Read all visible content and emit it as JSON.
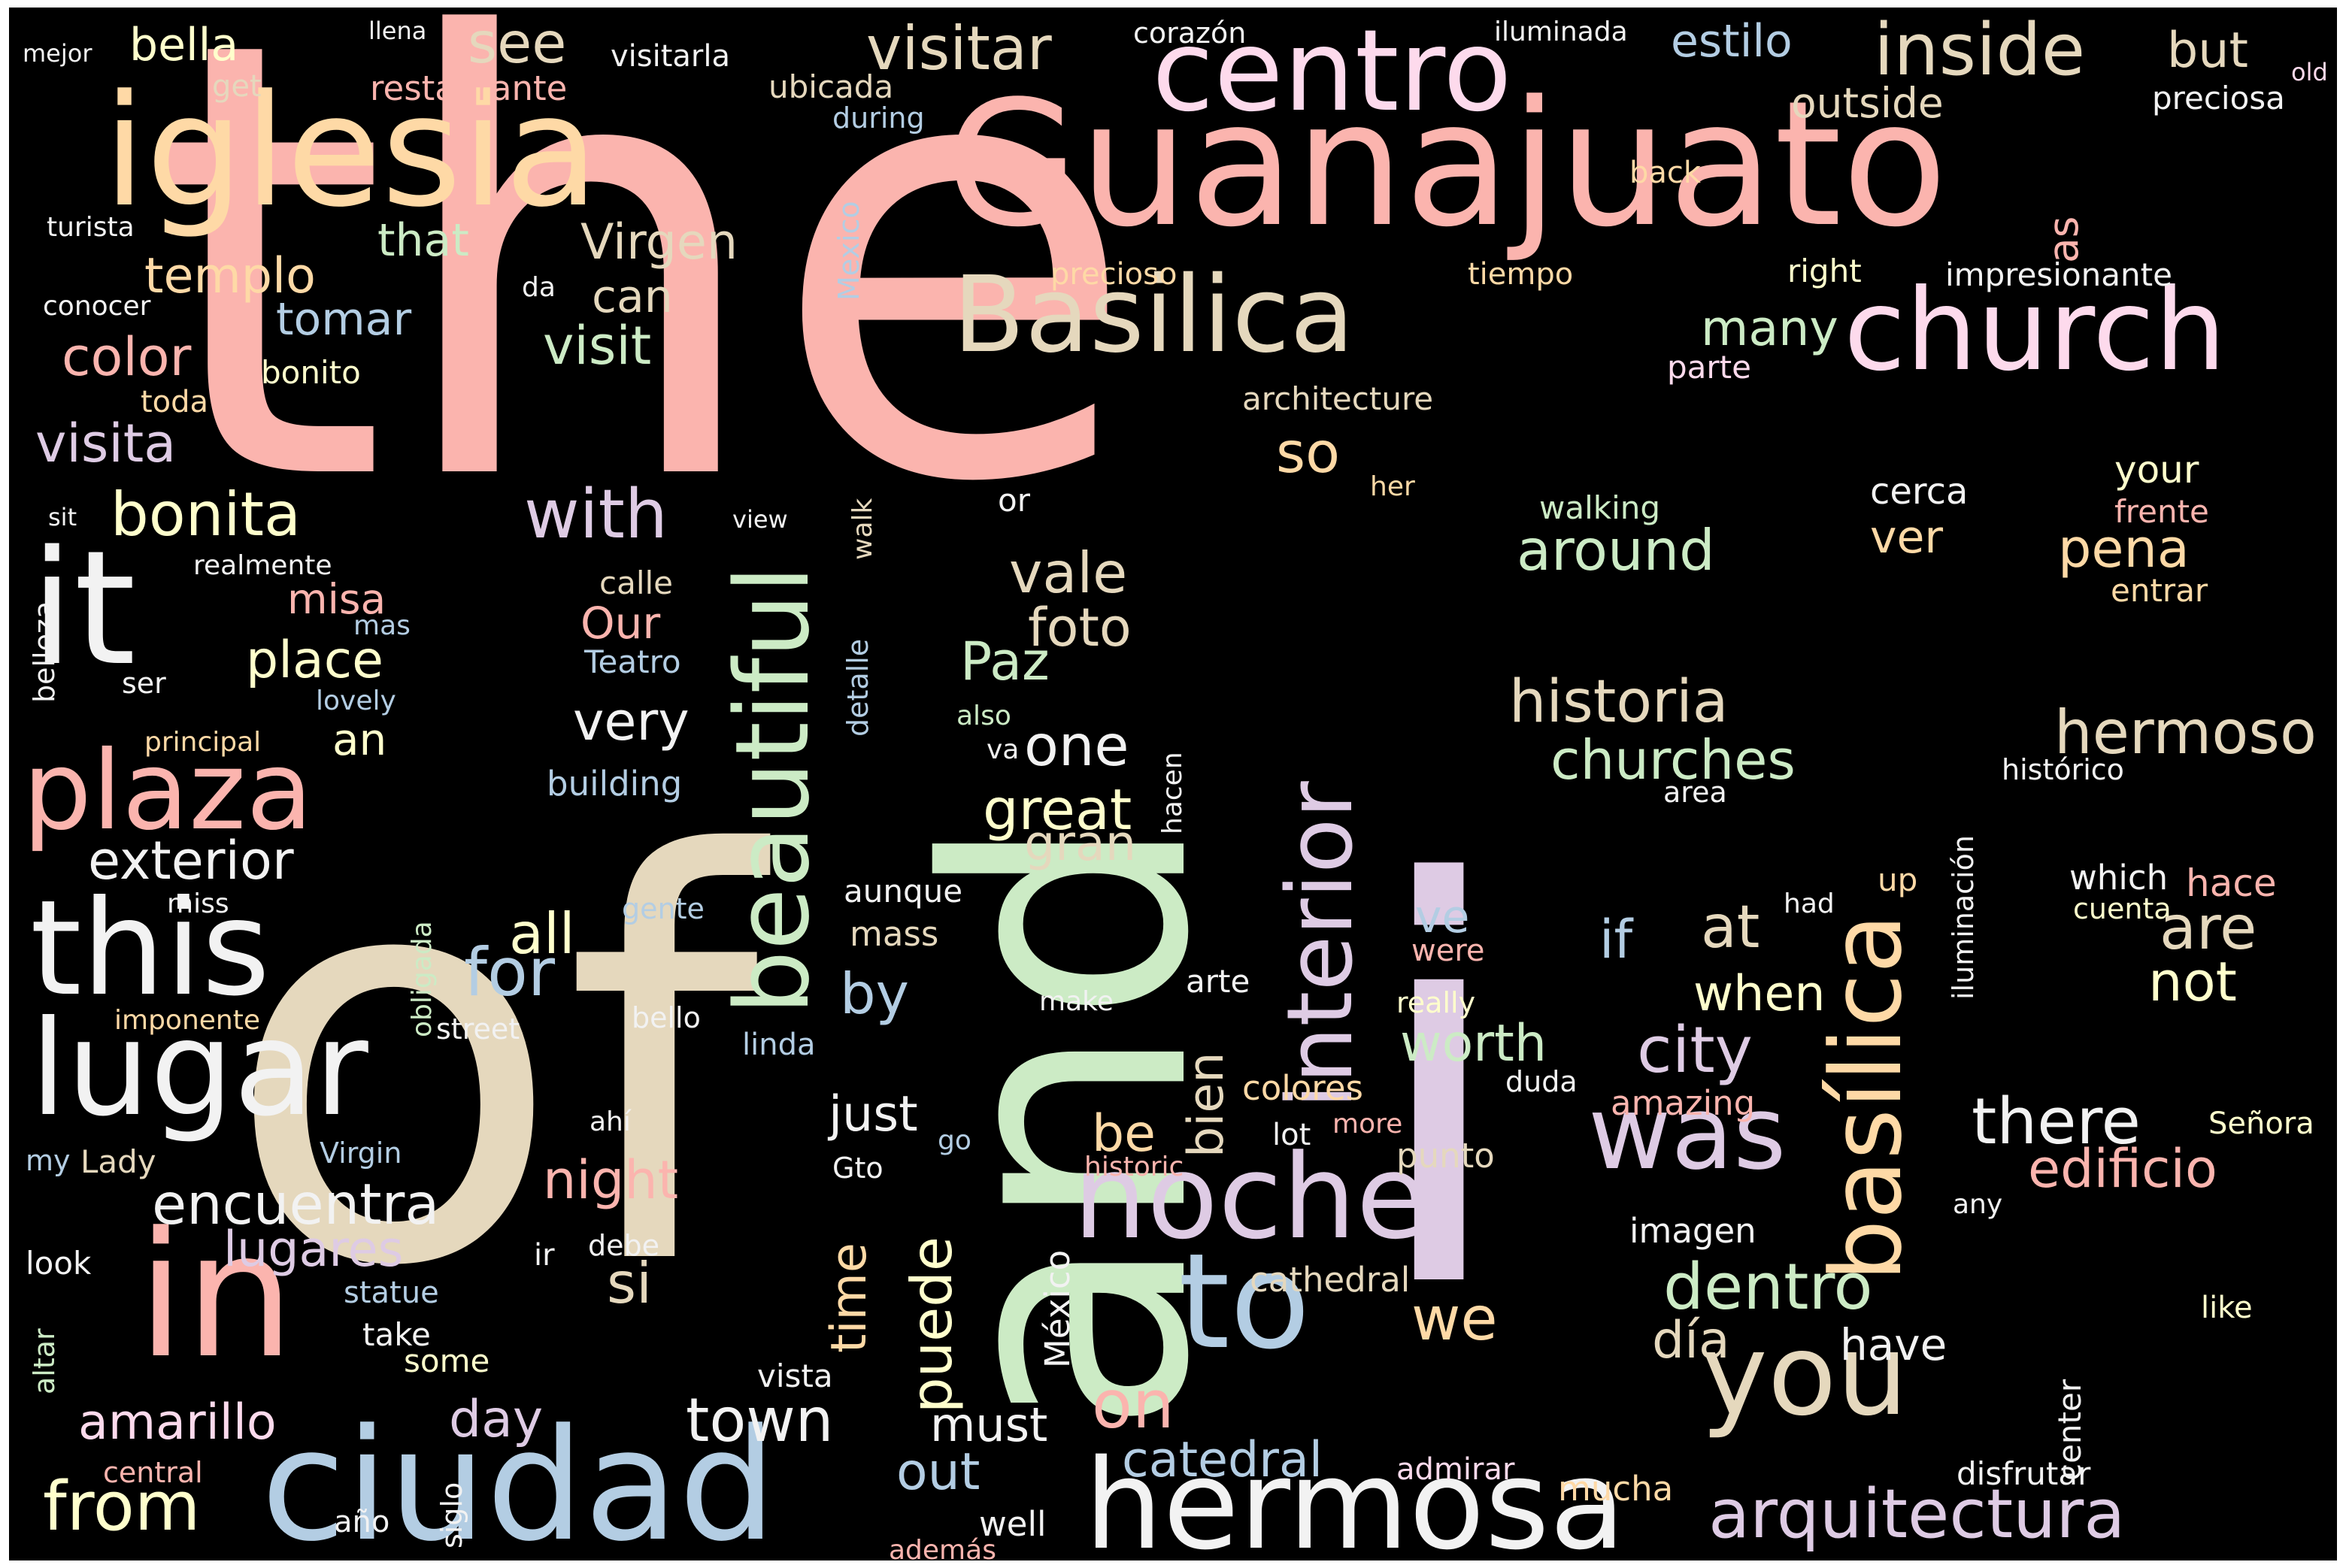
{
  "colors": {
    "background": "#000000",
    "palette": [
      "#fbb4ae",
      "#b3cde3",
      "#ccebc5",
      "#decbe4",
      "#fed9a6",
      "#ffffcc",
      "#e5d8bd",
      "#fddaec",
      "#f2f2f2"
    ]
  },
  "words": {
    "the": "the",
    "and": "and",
    "of": "of",
    "i": "i",
    "guanajuato": "Guanajuato",
    "iglesia": "iglesia",
    "basilica": "Basilica",
    "church": "church",
    "centro": "centro",
    "ciudad": "ciudad",
    "hermosa": "hermosa",
    "it": "it",
    "in": "in",
    "this": "this",
    "lugar": "lugar",
    "plaza": "plaza",
    "beautiful": "beautiful",
    "interior": "interior",
    "basilica_accent": "basílica",
    "noche": "noche",
    "to": "to",
    "was": "was",
    "you": "you",
    "arquitectura": "arquitectura",
    "inside": "inside",
    "visitar": "visitar",
    "see": "see",
    "bella": "bella",
    "estilo": "estilo",
    "but": "but",
    "outside": "outside",
    "preciosa": "preciosa",
    "old": "old",
    "mejor": "mejor",
    "llena": "llena",
    "visitarla": "visitarla",
    "corazon": "corazón",
    "iluminada": "iluminada",
    "get": "get",
    "restaurante": "restaurante",
    "ubicada": "ubicada",
    "during": "during",
    "back": "back",
    "as": "as",
    "mexico_plain": "Mexico",
    "turista": "turista",
    "that": "that",
    "virgen": "Virgen",
    "templo": "templo",
    "da": "da",
    "can": "can",
    "precioso": "precioso",
    "tiempo": "tiempo",
    "right": "right",
    "impresionante": "impresionante",
    "conocer": "conocer",
    "tomar": "tomar",
    "visit": "visit",
    "many": "many",
    "color": "color",
    "bonito": "bonito",
    "parte": "parte",
    "toda": "toda",
    "architecture": "architecture",
    "visita": "visita",
    "so": "so",
    "your": "your",
    "bonita": "bonita",
    "with": "with",
    "or": "or",
    "her": "her",
    "cerca": "cerca",
    "frente": "frente",
    "sit": "sit",
    "view": "view",
    "walk": "walk",
    "walking": "walking",
    "around": "around",
    "ver": "ver",
    "pena": "pena",
    "realmente": "realmente",
    "calle": "calle",
    "vale": "vale",
    "entrar": "entrar",
    "misa": "misa",
    "belleza": "belleza",
    "mas": "mas",
    "our": "Our",
    "foto": "foto",
    "place": "place",
    "teatro": "Teatro",
    "paz": "Paz",
    "ser": "ser",
    "detalle": "detalle",
    "historia": "historia",
    "lovely": "lovely",
    "very": "very",
    "also": "also",
    "one": "one",
    "hermoso": "hermoso",
    "an": "an",
    "principal": "principal",
    "va": "va",
    "churches": "churches",
    "building": "building",
    "iluminacion": "iluminación",
    "historico": "histórico",
    "area": "area",
    "great": "great",
    "hacen": "hacen",
    "exterior": "exterior",
    "gran": "gran",
    "aunque": "aunque",
    "up": "up",
    "which": "which",
    "hace": "hace",
    "miss": "miss",
    "obligada": "obligada",
    "gente": "gente",
    "cuenta": "cuenta",
    "had": "had",
    "all": "all",
    "mass": "mass",
    "ve": "ve",
    "at": "at",
    "if": "if",
    "are": "are",
    "were": "were",
    "for": "for",
    "by": "by",
    "not": "not",
    "make": "make",
    "arte": "arte",
    "when": "when",
    "really": "really",
    "imponente": "imponente",
    "bello": "bello",
    "street": "street",
    "linda": "linda",
    "worth": "worth",
    "city": "city",
    "bien": "bien",
    "duda": "duda",
    "colores": "colores",
    "amazing": "amazing",
    "ahi": "ahí",
    "just": "just",
    "more": "more",
    "lot": "lot",
    "there": "there",
    "senora": "Señora",
    "my": "my",
    "lady": "Lady",
    "virgin": "Virgin",
    "gto": "Gto",
    "go": "go",
    "historic": "historic",
    "punto": "punto",
    "be": "be",
    "night": "night",
    "edificio": "edificio",
    "encuentra": "encuentra",
    "any": "any",
    "lugares": "lugares",
    "imagen": "imagen",
    "look": "look",
    "ir": "ir",
    "debe": "debe",
    "si": "si",
    "time": "time",
    "dentro": "dentro",
    "statue": "statue",
    "cathedral": "cathedral",
    "mexico_accent": "México",
    "like": "like",
    "altar": "altar",
    "take": "take",
    "puede": "puede",
    "we": "we",
    "dia": "día",
    "some": "some",
    "vista": "vista",
    "have": "have",
    "center": "center",
    "amarillo": "amarillo",
    "day": "day",
    "town": "town",
    "must": "must",
    "on": "on",
    "catedral": "catedral",
    "central": "central",
    "admirar": "admirar",
    "out": "out",
    "mucha": "mucha",
    "disfrutar": "disfrutar",
    "from": "from",
    "ano": "año",
    "siglo": "siglo",
    "well": "well",
    "ademas": "además"
  }
}
